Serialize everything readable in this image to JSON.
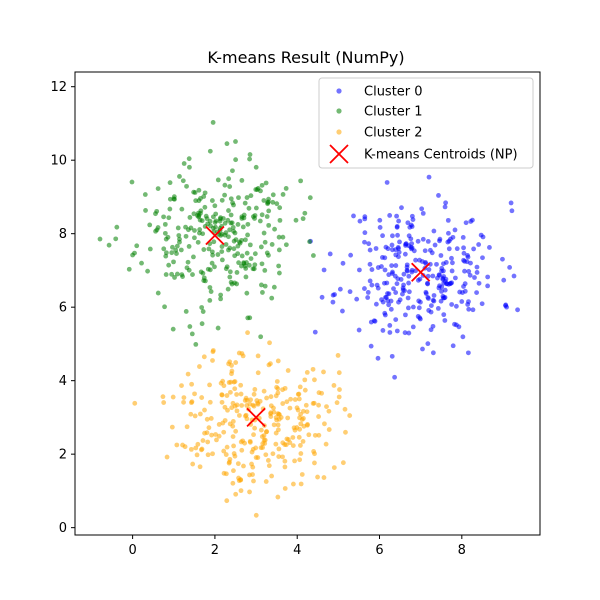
{
  "chart_data": {
    "type": "scatter",
    "title": "K-means Result (NumPy)",
    "xlabel": "",
    "ylabel": "",
    "xlim": [
      -1.4,
      9.9
    ],
    "ylim": [
      -0.2,
      12.4
    ],
    "xticks": [
      0,
      2,
      4,
      6,
      8
    ],
    "yticks": [
      0,
      2,
      4,
      6,
      8,
      10,
      12
    ],
    "grid": false,
    "legend_position": "top-right",
    "series": [
      {
        "name": "Cluster 0",
        "color": "#0000ff",
        "marker": "circle",
        "cluster_summary": {
          "center": [
            7.0,
            6.95
          ],
          "spread": [
            0.95,
            0.95
          ],
          "count": 300,
          "seed": 11
        }
      },
      {
        "name": "Cluster 1",
        "color": "#008000",
        "marker": "circle",
        "cluster_summary": {
          "center": [
            2.0,
            7.95
          ],
          "spread": [
            0.95,
            1.0
          ],
          "count": 300,
          "seed": 23
        }
      },
      {
        "name": "Cluster 2",
        "color": "#ffa500",
        "marker": "circle",
        "cluster_summary": {
          "center": [
            3.0,
            3.0
          ],
          "spread": [
            0.95,
            0.95
          ],
          "count": 300,
          "seed": 37
        }
      }
    ],
    "centroids": {
      "name": "K-means Centroids (NP)",
      "color": "#ff0000",
      "marker": "x",
      "points": [
        [
          7.0,
          6.95
        ],
        [
          2.0,
          7.95
        ],
        [
          3.0,
          3.0
        ]
      ]
    }
  }
}
